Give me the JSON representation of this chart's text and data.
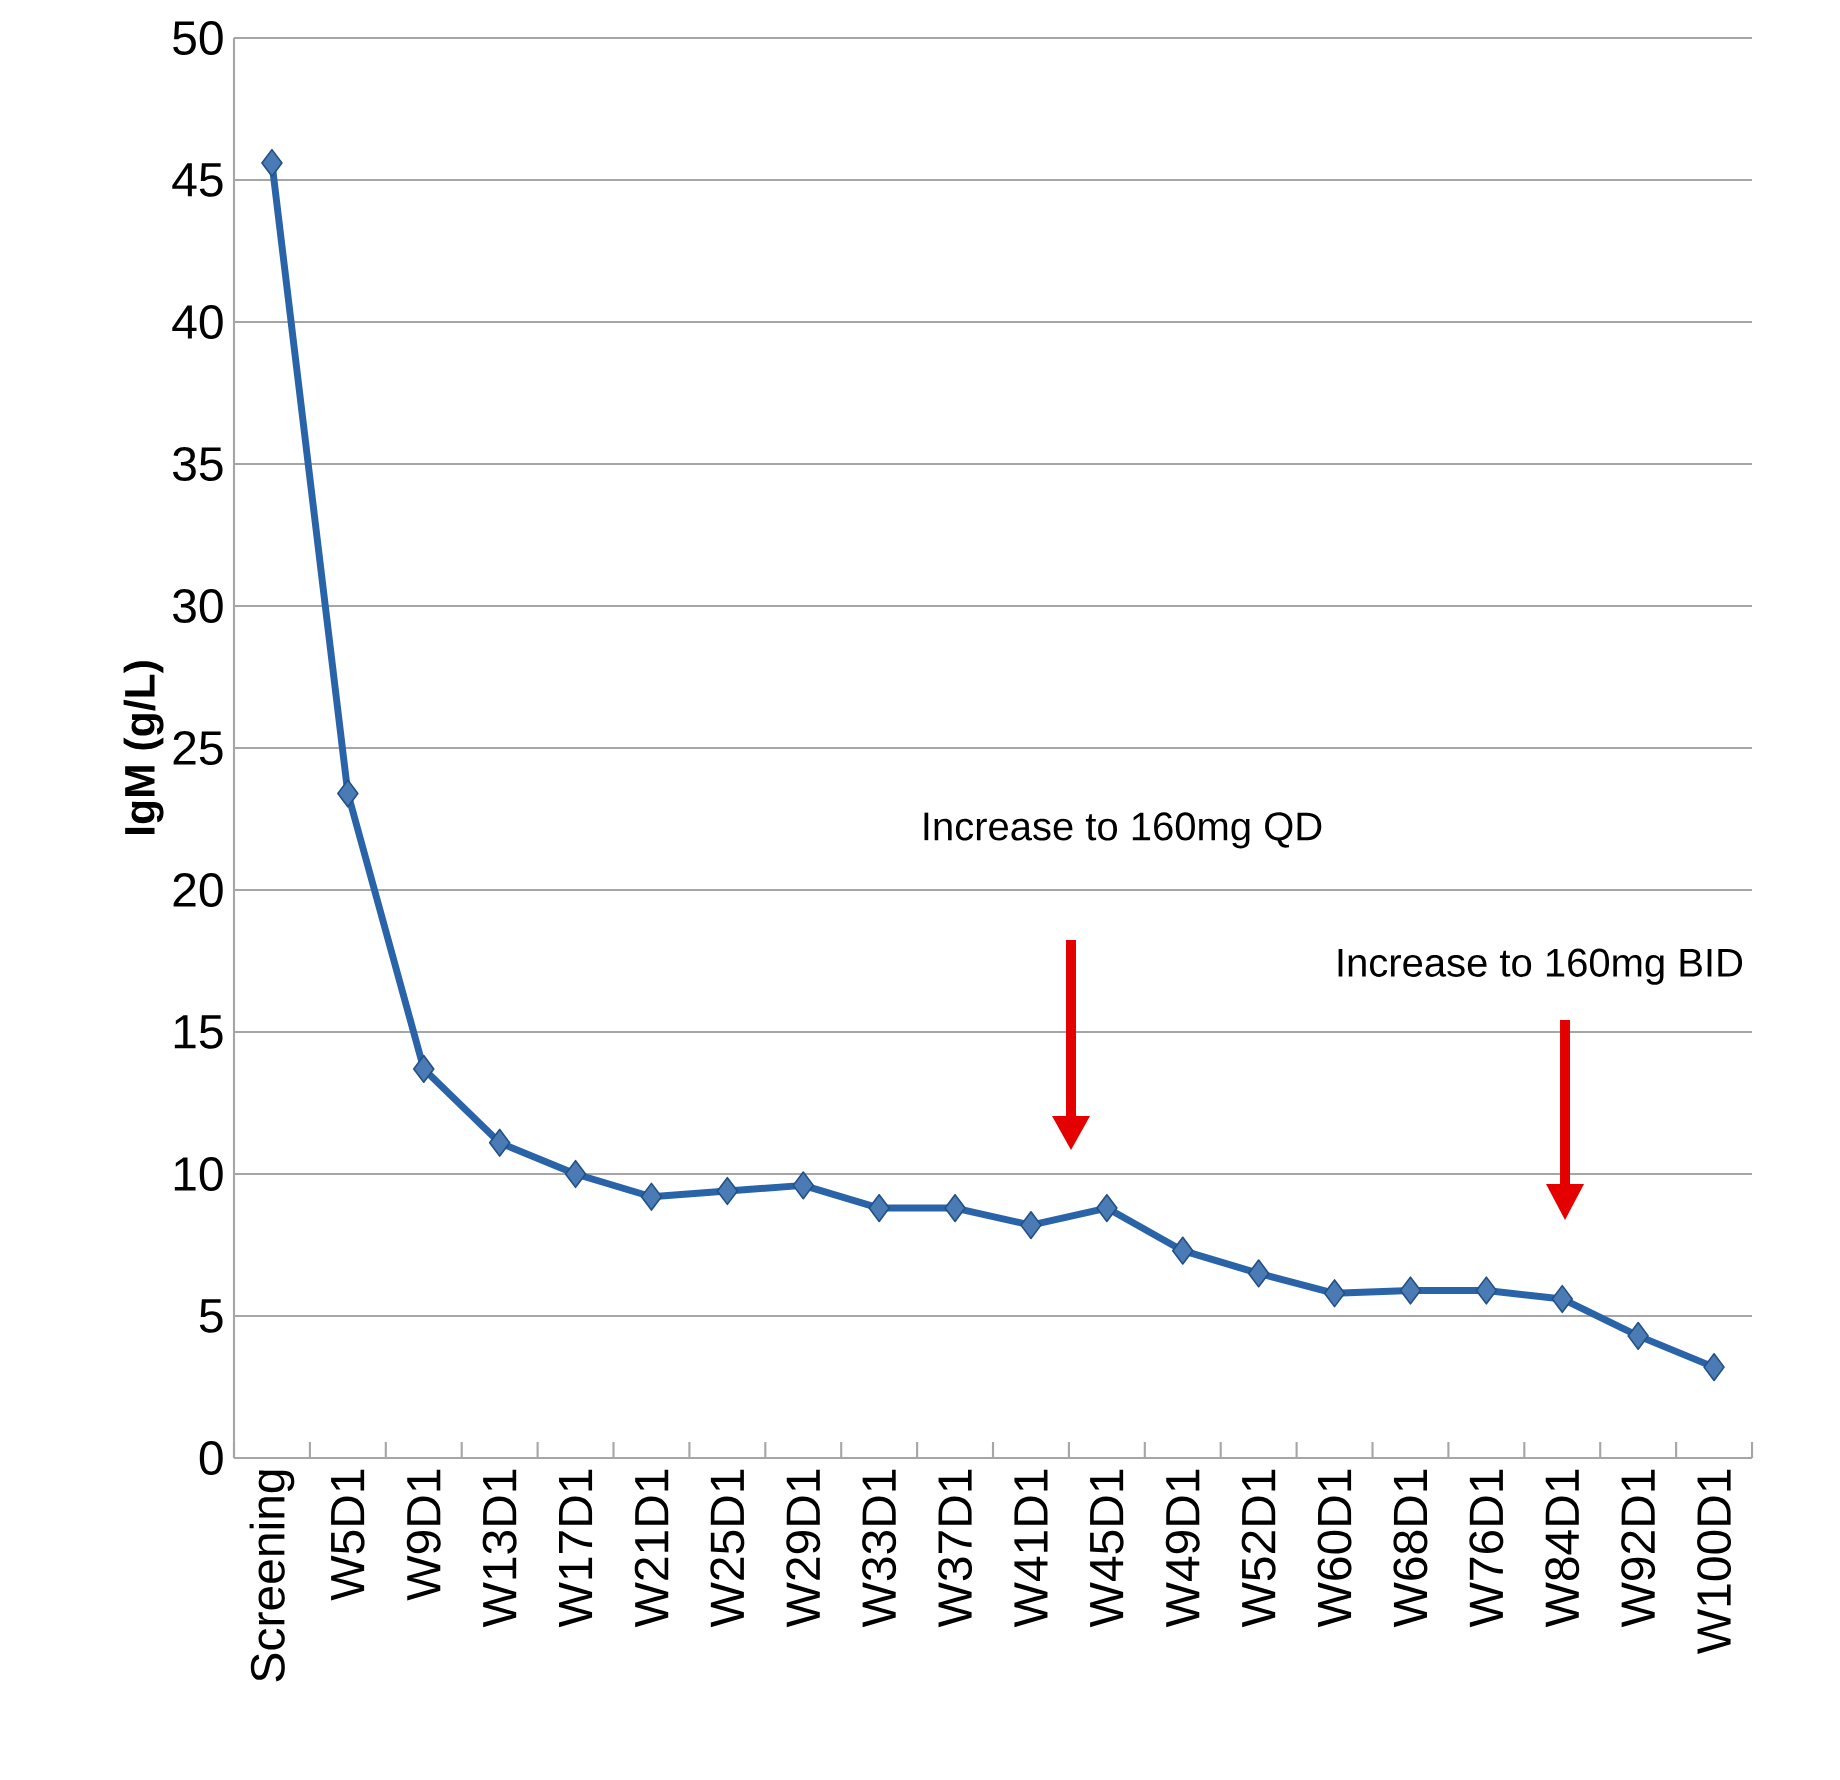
{
  "chart_data": {
    "type": "line",
    "ylabel": "IgM (g/L)",
    "categories": [
      "Screening",
      "W5D1",
      "W9D1",
      "W13D1",
      "W17D1",
      "W21D1",
      "W25D1",
      "W29D1",
      "W33D1",
      "W37D1",
      "W41D1",
      "W45D1",
      "W49D1",
      "W52D1",
      "W60D1",
      "W68D1",
      "W76D1",
      "W84D1",
      "W92D1",
      "W100D1"
    ],
    "values": [
      45.6,
      23.4,
      13.7,
      11.1,
      10.0,
      9.2,
      9.4,
      9.6,
      8.8,
      8.8,
      8.2,
      8.8,
      7.3,
      6.5,
      5.8,
      5.9,
      5.9,
      5.6,
      4.3,
      3.2
    ],
    "color": "#2a64a8",
    "marker": "diamond",
    "line_style": "solid",
    "ylim": [
      0,
      50
    ],
    "yticks": [
      0,
      5,
      10,
      15,
      20,
      25,
      30,
      35,
      40,
      45,
      50
    ],
    "grid": "y",
    "annotations": [
      "Increase to 160mg QD",
      "Increase to 160mg BID"
    ]
  }
}
